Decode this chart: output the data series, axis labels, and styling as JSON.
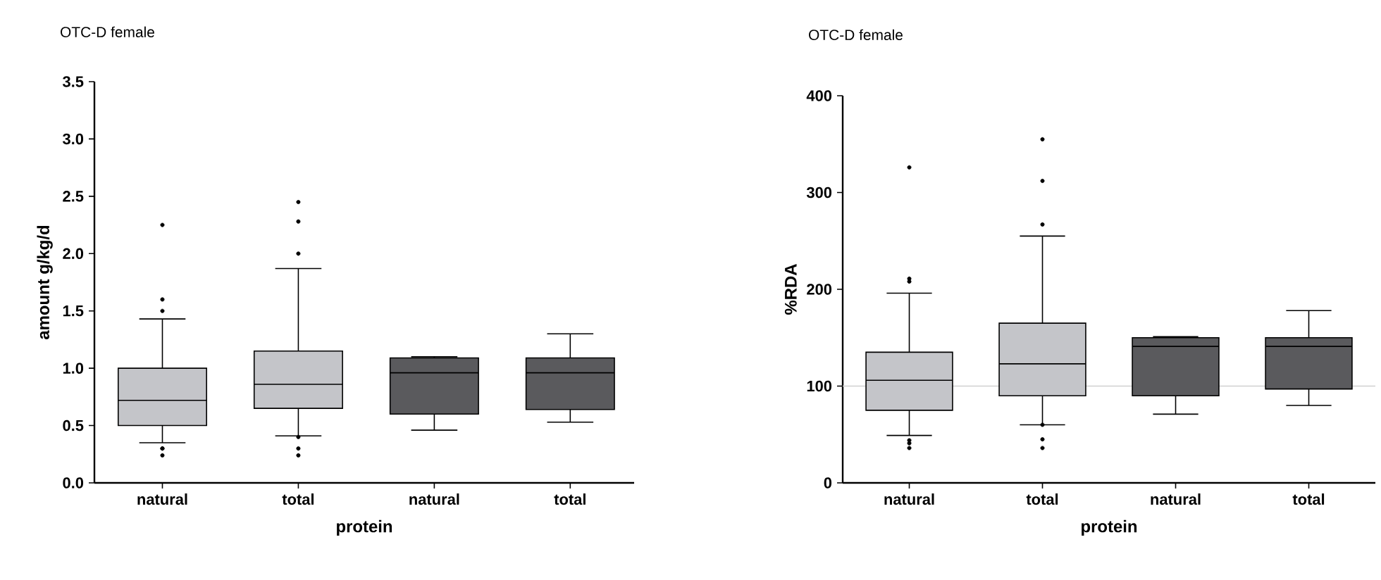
{
  "chart_data": [
    {
      "type": "box",
      "title": "OTC-D female",
      "xlabel": "protein",
      "ylabel": "amount g/kg/d",
      "categories": [
        "natural",
        "total",
        "natural",
        "total"
      ],
      "colors": [
        "#c4c5c9",
        "#c4c5c9",
        "#5a5a5d",
        "#5a5a5d"
      ],
      "boxes": [
        {
          "low": 0.35,
          "q1": 0.5,
          "median": 0.72,
          "q3": 1.0,
          "high": 1.43,
          "outliers": [
            0.3,
            0.3,
            0.24,
            1.5,
            1.6,
            2.25
          ]
        },
        {
          "low": 0.41,
          "q1": 0.65,
          "median": 0.86,
          "q3": 1.15,
          "high": 1.87,
          "outliers": [
            0.4,
            0.3,
            0.24,
            2.0,
            2.28,
            2.45
          ]
        },
        {
          "low": 0.46,
          "q1": 0.6,
          "median": 0.96,
          "q3": 1.09,
          "high": 1.1
        },
        {
          "low": 0.53,
          "q1": 0.64,
          "median": 0.96,
          "q3": 1.09,
          "high": 1.3
        }
      ],
      "ylim": [
        0,
        3.5
      ],
      "yticks": [
        {
          "value": 0,
          "label": "0.0"
        },
        0.5,
        {
          "value": 1,
          "label": "1.0"
        },
        1.5,
        {
          "value": 2,
          "label": "2.0"
        },
        2.5,
        {
          "value": 3,
          "label": "3.0"
        },
        3.5
      ]
    },
    {
      "type": "box",
      "title": "OTC-D female",
      "xlabel": "protein",
      "ylabel": "%RDA",
      "categories": [
        "natural",
        "total",
        "natural",
        "total"
      ],
      "colors": [
        "#c4c5c9",
        "#c4c5c9",
        "#5a5a5d",
        "#5a5a5d"
      ],
      "boxes": [
        {
          "low": 49,
          "q1": 75,
          "median": 106,
          "q3": 135,
          "high": 196,
          "outliers": [
            44,
            41,
            36,
            208,
            211,
            326
          ]
        },
        {
          "low": 60,
          "q1": 90,
          "median": 123,
          "q3": 165,
          "high": 255,
          "outliers": [
            60,
            45,
            36,
            267,
            312,
            355
          ]
        },
        {
          "low": 71,
          "q1": 90,
          "median": 141,
          "q3": 150,
          "high": 151
        },
        {
          "low": 80,
          "q1": 97,
          "median": 141,
          "q3": 150,
          "high": 178
        }
      ],
      "ylim": [
        0,
        400
      ],
      "yticks": [
        0,
        100,
        200,
        300,
        400
      ],
      "ref_lines": [
        {
          "axis": "y",
          "value": 100,
          "color": "#d0d0d0"
        }
      ]
    }
  ]
}
